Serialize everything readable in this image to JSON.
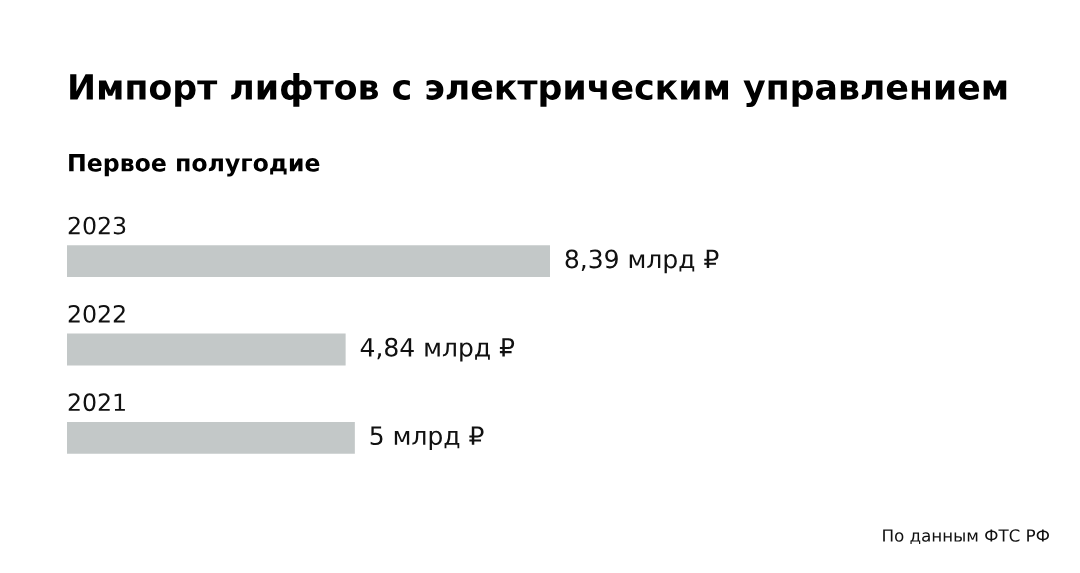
{
  "chart_data": {
    "type": "bar",
    "orientation": "horizontal",
    "title": "Импорт лифтов с электрическим управлением",
    "subtitle": "Первое полугодие",
    "categories": [
      "2023",
      "2022",
      "2021"
    ],
    "values": [
      8.39,
      4.84,
      5
    ],
    "value_labels": [
      "8,39 млрд ₽",
      "4,84 млрд ₽",
      "5 млрд ₽"
    ],
    "color": "#c3c8c8",
    "annotations": [
      "По данным ФТС РФ"
    ]
  }
}
